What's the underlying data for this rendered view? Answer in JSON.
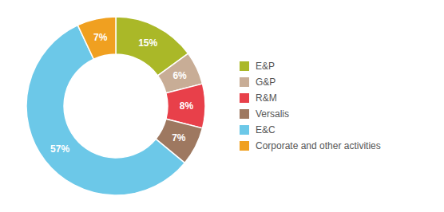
{
  "chart_data": {
    "type": "pie",
    "categories": [
      "E&P",
      "G&P",
      "R&M",
      "Versalis",
      "E&C",
      "Corporate and other activities"
    ],
    "values": [
      15,
      6,
      8,
      7,
      57,
      7
    ],
    "value_labels": [
      "15%",
      "6%",
      "8%",
      "7%",
      "57%",
      "7%"
    ],
    "colors": [
      "#aab828",
      "#c8ad96",
      "#e8404a",
      "#9e7860",
      "#6cc8e8",
      "#f0a020"
    ],
    "data_labels": true,
    "legend": "right"
  }
}
